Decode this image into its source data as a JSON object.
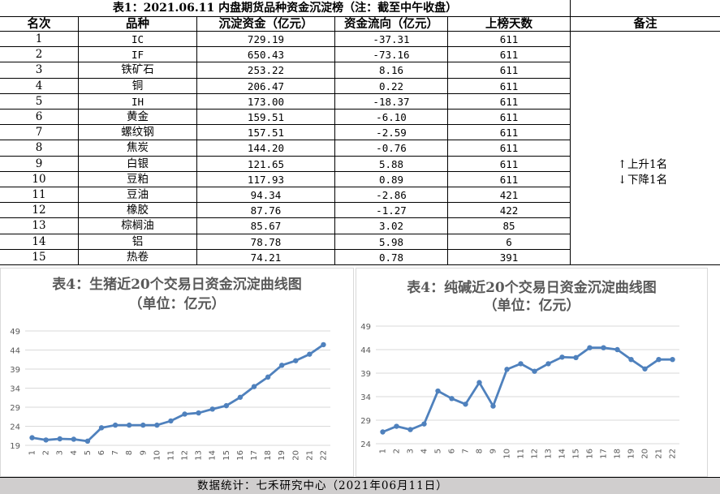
{
  "table": {
    "title": "表1：2021.06.11 内盘期货品种资金沉淀榜（注：截至中午收盘）",
    "headers": [
      "名次",
      "品种",
      "沉淀资金（亿元）",
      "资金流向（亿元）",
      "上榜天数",
      "备注"
    ],
    "rows": [
      {
        "rank": "1",
        "name": "IC",
        "fund": "729.19",
        "flow": "-37.31",
        "days": "611"
      },
      {
        "rank": "2",
        "name": "IF",
        "fund": "650.43",
        "flow": "-73.16",
        "days": "611"
      },
      {
        "rank": "3",
        "name": "铁矿石",
        "fund": "253.22",
        "flow": "8.16",
        "days": "611"
      },
      {
        "rank": "4",
        "name": "铜",
        "fund": "206.47",
        "flow": "0.22",
        "days": "611"
      },
      {
        "rank": "5",
        "name": "IH",
        "fund": "173.00",
        "flow": "-18.37",
        "days": "611"
      },
      {
        "rank": "6",
        "name": "黄金",
        "fund": "159.51",
        "flow": "-6.10",
        "days": "611"
      },
      {
        "rank": "7",
        "name": "螺纹钢",
        "fund": "157.51",
        "flow": "-2.59",
        "days": "611"
      },
      {
        "rank": "8",
        "name": "焦炭",
        "fund": "144.20",
        "flow": "-0.76",
        "days": "611"
      },
      {
        "rank": "9",
        "name": "白银",
        "fund": "121.65",
        "flow": "5.88",
        "days": "611"
      },
      {
        "rank": "10",
        "name": "豆粕",
        "fund": "117.93",
        "flow": "0.89",
        "days": "611"
      },
      {
        "rank": "11",
        "name": "豆油",
        "fund": "94.34",
        "flow": "-2.86",
        "days": "421"
      },
      {
        "rank": "12",
        "name": "橡胶",
        "fund": "87.76",
        "flow": "-1.27",
        "days": "422"
      },
      {
        "rank": "13",
        "name": "棕榈油",
        "fund": "85.67",
        "flow": "3.02",
        "days": "85"
      },
      {
        "rank": "14",
        "name": "铝",
        "fund": "78.78",
        "flow": "5.98",
        "days": "6"
      },
      {
        "rank": "15",
        "name": "热卷",
        "fund": "74.21",
        "flow": "0.78",
        "days": "391"
      }
    ],
    "notes": [
      {
        "row": 9,
        "arrow": "↑",
        "text": "上升1名"
      },
      {
        "row": 10,
        "arrow": "↓",
        "text": "下降1名"
      }
    ]
  },
  "chart_data": [
    {
      "type": "line",
      "title": "表4：生猪近20个交易日资金沉淀曲线图",
      "subtitle": "（单位：亿元）",
      "x": [
        "1",
        "2",
        "3",
        "4",
        "5",
        "6",
        "7",
        "8",
        "9",
        "10",
        "11",
        "12",
        "13",
        "14",
        "15",
        "16",
        "17",
        "18",
        "19",
        "20",
        "21",
        "22"
      ],
      "values": [
        21.0,
        20.4,
        20.7,
        20.6,
        20.1,
        23.6,
        24.3,
        24.3,
        24.3,
        24.3,
        25.4,
        27.2,
        27.5,
        28.5,
        29.4,
        31.6,
        34.4,
        36.9,
        40.0,
        41.2,
        42.9,
        45.4
      ],
      "yticks": [
        19,
        24,
        29,
        34,
        39,
        44,
        49
      ],
      "ylim": [
        19,
        49
      ],
      "color": "#4f81bd",
      "grid": true
    },
    {
      "type": "line",
      "title": "表4：纯碱近20个交易日资金沉淀曲线图",
      "subtitle": "（单位：亿元）",
      "x": [
        "1",
        "2",
        "3",
        "4",
        "5",
        "6",
        "7",
        "8",
        "9",
        "10",
        "11",
        "12",
        "13",
        "14",
        "15",
        "16",
        "17",
        "18",
        "19",
        "20",
        "21",
        "22"
      ],
      "values": [
        26.5,
        27.7,
        27.0,
        28.2,
        35.2,
        33.6,
        32.4,
        37.0,
        32.0,
        39.8,
        41.0,
        39.4,
        41.0,
        42.4,
        42.3,
        44.4,
        44.4,
        44.0,
        41.9,
        39.9,
        41.9,
        41.9
      ],
      "yticks": [
        24,
        29,
        34,
        39,
        44,
        49
      ],
      "ylim": [
        24,
        49
      ],
      "color": "#4f81bd",
      "grid": true
    }
  ],
  "footer": "数据统计：七禾研究中心（2021年06月11日）"
}
